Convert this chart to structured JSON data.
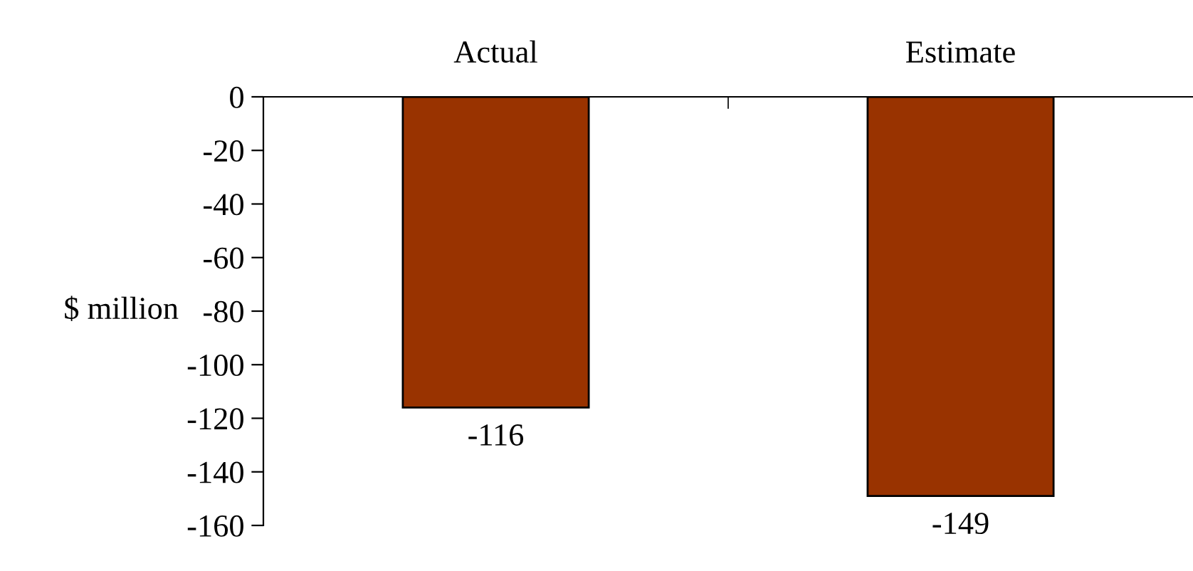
{
  "chart_data": {
    "type": "bar",
    "categories": [
      "Actual",
      "Estimate"
    ],
    "values": [
      -116,
      -149
    ],
    "color": "#993300",
    "ylabel": "$ million",
    "ylim": [
      -160,
      0
    ],
    "yticks": [
      0,
      -20,
      -40,
      -60,
      -80,
      -100,
      -120,
      -140,
      -160
    ],
    "data_labels": true,
    "grid": false,
    "legend": false
  }
}
